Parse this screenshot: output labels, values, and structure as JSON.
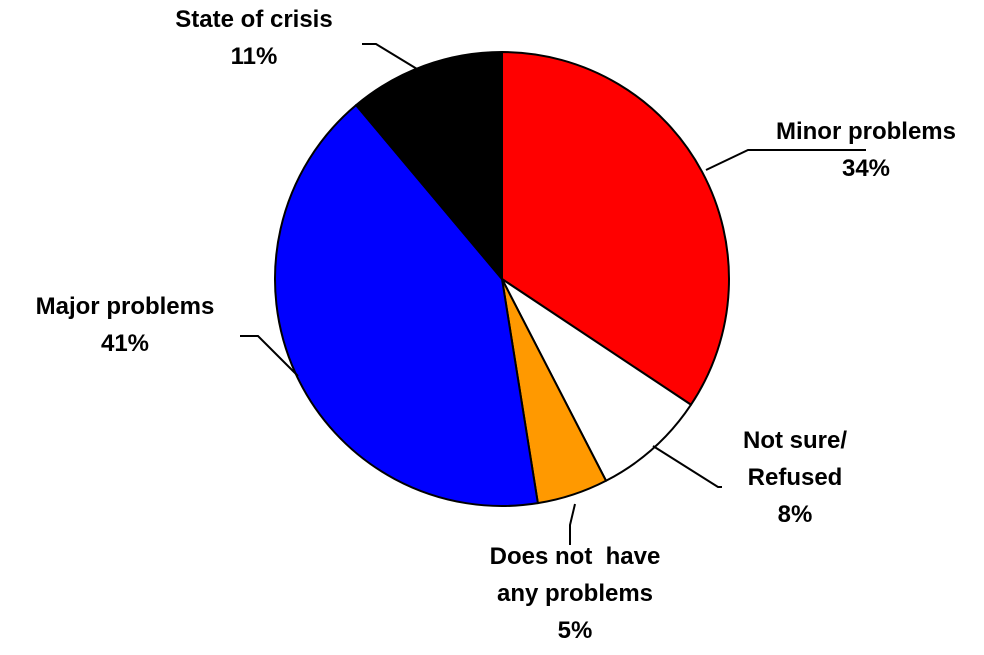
{
  "chart_data": {
    "type": "pie",
    "title": "",
    "legend": "none",
    "start_angle_deg": 0,
    "direction": "clockwise",
    "slices": [
      {
        "name": [
          "Minor problems"
        ],
        "value": 34,
        "label": "34%",
        "color": "#ff0000"
      },
      {
        "name": [
          "Not sure/",
          "Refused"
        ],
        "value": 8,
        "label": "8%",
        "color": "#ffffff"
      },
      {
        "name": [
          "Does not  have",
          "any problems"
        ],
        "value": 5,
        "label": "5%",
        "color": "#ff9900"
      },
      {
        "name": [
          "Major problems"
        ],
        "value": 41,
        "label": "41%",
        "color": "#0000ff"
      },
      {
        "name": [
          "State of crisis"
        ],
        "value": 11,
        "label": "11%",
        "color": "#000000"
      }
    ]
  }
}
